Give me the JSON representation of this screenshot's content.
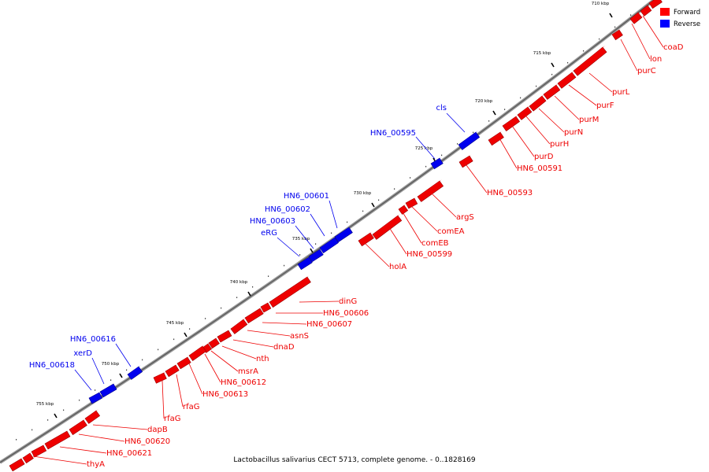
{
  "legend": [
    {
      "label": "Forward",
      "color": "#ff0000"
    },
    {
      "label": "Reverse",
      "color": "#0000ff"
    }
  ],
  "caption": "Lactobacillus salivarius CECT 5713, complete genome. - 0..1828169",
  "colors": {
    "forward": "#ee0000",
    "reverse": "#0000ee",
    "backbone": "#999999"
  },
  "ticks": [
    "710 kbp",
    "715 kbp",
    "720 kbp",
    "725 kbp",
    "730 kbp",
    "735 kbp",
    "740 kbp",
    "745 kbp",
    "750 kbp",
    "755 kbp"
  ],
  "forward_labels": [
    "coaD",
    "lon",
    "purC",
    "purL",
    "purF",
    "purM",
    "purN",
    "purH",
    "purD",
    "HN6_00591",
    "HN6_00593",
    "argS",
    "comEA",
    "comEB",
    "HN6_00599",
    "holA",
    "dinG",
    "HN6_00606",
    "HN6_00607",
    "asnS",
    "dnaD",
    "nth",
    "msrA",
    "HN6_00612",
    "HN6_00613",
    "rfaG",
    "rfaG",
    "dapB",
    "HN6_00620",
    "HN6_00621",
    "thyA"
  ],
  "reverse_labels": [
    "cls",
    "HN6_00595",
    "HN6_00601",
    "HN6_00602",
    "HN6_00603",
    "eRG",
    "HN6_00616",
    "xerD",
    "HN6_00618"
  ]
}
